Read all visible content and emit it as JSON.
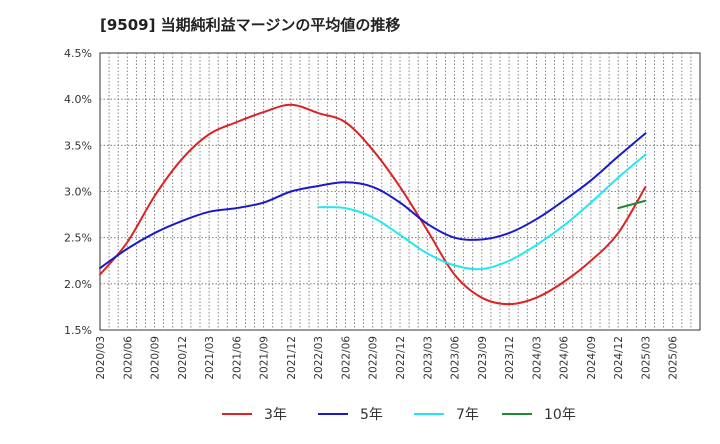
{
  "chart_data": {
    "type": "line",
    "title": "[9509]  当期純利益マージンの平均値の推移",
    "xlabel": "",
    "ylabel": "",
    "ylim": [
      1.5,
      4.5
    ],
    "yticks": [
      1.5,
      2.0,
      2.5,
      3.0,
      3.5,
      4.0,
      4.5
    ],
    "ytick_labels": [
      "1.5%",
      "2.0%",
      "2.5%",
      "3.0%",
      "3.5%",
      "4.0%",
      "4.5%"
    ],
    "xticks": [
      "2020/03",
      "2020/06",
      "2020/09",
      "2020/12",
      "2021/03",
      "2021/06",
      "2021/09",
      "2021/12",
      "2022/03",
      "2022/06",
      "2022/09",
      "2022/12",
      "2023/03",
      "2023/06",
      "2023/09",
      "2023/12",
      "2024/03",
      "2024/06",
      "2024/09",
      "2024/12",
      "2025/03",
      "2025/06"
    ],
    "grid": true,
    "legend_position": "bottom",
    "series": [
      {
        "name": "3年",
        "color": "#dd2222",
        "points": [
          [
            "2020/03",
            2.1
          ],
          [
            "2020/06",
            2.45
          ],
          [
            "2020/09",
            2.95
          ],
          [
            "2020/12",
            3.35
          ],
          [
            "2021/03",
            3.62
          ],
          [
            "2021/06",
            3.75
          ],
          [
            "2021/09",
            3.86
          ],
          [
            "2021/12",
            3.94
          ],
          [
            "2022/03",
            3.85
          ],
          [
            "2022/06",
            3.75
          ],
          [
            "2022/09",
            3.45
          ],
          [
            "2022/12",
            3.05
          ],
          [
            "2023/03",
            2.58
          ],
          [
            "2023/06",
            2.1
          ],
          [
            "2023/09",
            1.85
          ],
          [
            "2023/12",
            1.78
          ],
          [
            "2024/03",
            1.85
          ],
          [
            "2024/06",
            2.02
          ],
          [
            "2024/09",
            2.25
          ],
          [
            "2024/12",
            2.55
          ],
          [
            "2025/03",
            3.05
          ]
        ]
      },
      {
        "name": "5年",
        "color": "#1a1acc",
        "points": [
          [
            "2020/03",
            2.17
          ],
          [
            "2020/06",
            2.38
          ],
          [
            "2020/09",
            2.55
          ],
          [
            "2020/12",
            2.68
          ],
          [
            "2021/03",
            2.78
          ],
          [
            "2021/06",
            2.82
          ],
          [
            "2021/09",
            2.88
          ],
          [
            "2021/12",
            3.0
          ],
          [
            "2022/03",
            3.06
          ],
          [
            "2022/06",
            3.1
          ],
          [
            "2022/09",
            3.05
          ],
          [
            "2022/12",
            2.88
          ],
          [
            "2023/03",
            2.65
          ],
          [
            "2023/06",
            2.5
          ],
          [
            "2023/09",
            2.48
          ],
          [
            "2023/12",
            2.55
          ],
          [
            "2024/03",
            2.7
          ],
          [
            "2024/06",
            2.9
          ],
          [
            "2024/09",
            3.12
          ],
          [
            "2024/12",
            3.38
          ],
          [
            "2025/03",
            3.63
          ]
        ]
      },
      {
        "name": "7年",
        "color": "#22e8ee",
        "points": [
          [
            "2022/03",
            2.83
          ],
          [
            "2022/06",
            2.82
          ],
          [
            "2022/09",
            2.72
          ],
          [
            "2022/12",
            2.53
          ],
          [
            "2023/03",
            2.33
          ],
          [
            "2023/06",
            2.2
          ],
          [
            "2023/09",
            2.16
          ],
          [
            "2023/12",
            2.25
          ],
          [
            "2024/03",
            2.42
          ],
          [
            "2024/06",
            2.63
          ],
          [
            "2024/09",
            2.88
          ],
          [
            "2024/12",
            3.15
          ],
          [
            "2025/03",
            3.4
          ]
        ]
      },
      {
        "name": "10年",
        "color": "#228833",
        "points": [
          [
            "2024/12",
            2.82
          ],
          [
            "2025/03",
            2.9
          ]
        ]
      }
    ]
  }
}
